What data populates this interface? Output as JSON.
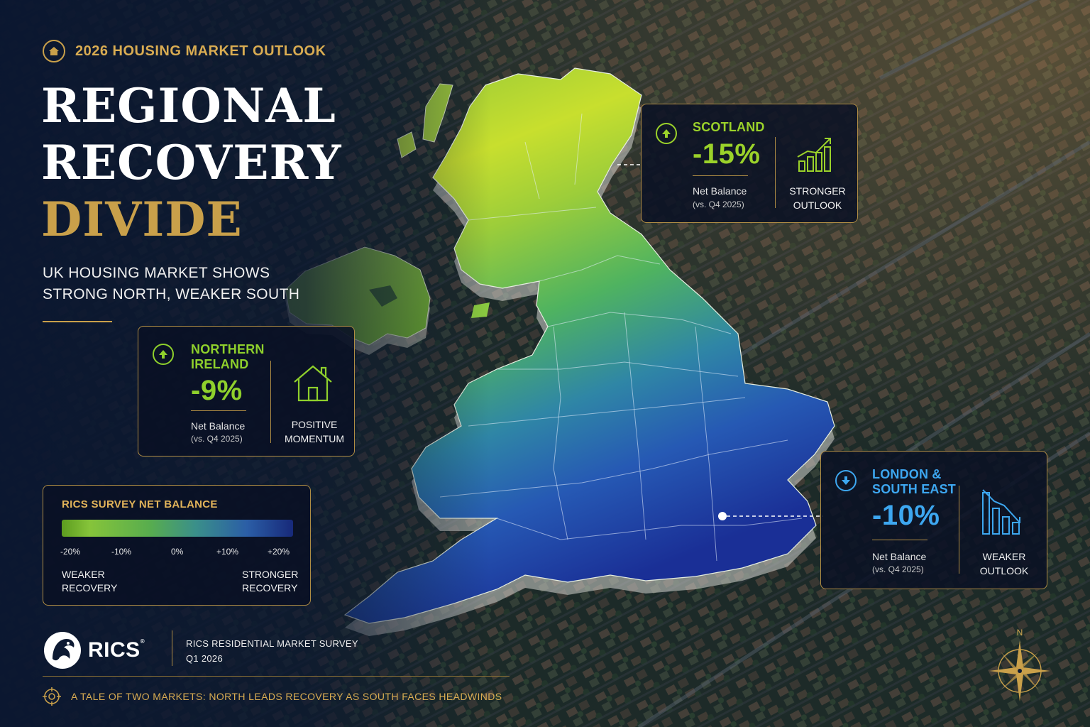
{
  "header": {
    "kicker": "2026 HOUSING MARKET OUTLOOK",
    "kicker_icon": "house-icon",
    "title_line1": "REGIONAL",
    "title_line2": "RECOVERY",
    "title_line3": "DIVIDE",
    "subtitle_line1": "UK HOUSING MARKET SHOWS",
    "subtitle_line2": "STRONG NORTH, WEAKER SOUTH"
  },
  "regions": [
    {
      "name_line1": "SCOTLAND",
      "name_line2": "",
      "value": "-15%",
      "metric": "Net Balance",
      "metric_sub": "(vs. Q4 2025)",
      "outlook_line1": "STRONGER",
      "outlook_line2": "OUTLOOK",
      "direction": "up",
      "icon": "rising-bar-chart-icon",
      "color": "#9bd22a"
    },
    {
      "name_line1": "NORTHERN",
      "name_line2": "IRELAND",
      "value": "-9%",
      "metric": "Net Balance",
      "metric_sub": "(vs. Q4 2025)",
      "outlook_line1": "POSITIVE",
      "outlook_line2": "MOMENTUM",
      "direction": "up",
      "icon": "house-icon",
      "color": "#8fd02c"
    },
    {
      "name_line1": "LONDON &",
      "name_line2": "SOUTH EAST",
      "value": "-10%",
      "metric": "Net Balance",
      "metric_sub": "(vs. Q4 2025)",
      "outlook_line1": "WEAKER",
      "outlook_line2": "OUTLOOK",
      "direction": "down",
      "icon": "falling-bar-chart-icon",
      "color": "#3da7f0"
    }
  ],
  "legend": {
    "title": "RICS SURVEY NET BALANCE",
    "ticks": [
      "-20%",
      "-10%",
      "0%",
      "+10%",
      "+20%"
    ],
    "low_label_line1": "WEAKER",
    "low_label_line2": "RECOVERY",
    "high_label_line1": "STRONGER",
    "high_label_line2": "RECOVERY",
    "scale_min": -20,
    "scale_max": 20
  },
  "footer": {
    "brand": "RICS",
    "brand_mark": "®",
    "brand_icon": "rics-lion-icon",
    "survey_line1": "RICS RESIDENTIAL MARKET SURVEY",
    "survey_line2": "Q1 2026",
    "tagline": "A TALE OF TWO MARKETS: NORTH LEADS RECOVERY AS SOUTH FACES HEADWINDS",
    "tagline_icon": "target-icon",
    "compass_label": "N",
    "compass_icon": "compass-rose-icon"
  },
  "colors": {
    "gold": "#c9a04a",
    "navy": "#0d1a33",
    "north_green": "#9bd22a",
    "south_blue": "#1a3c9c"
  }
}
